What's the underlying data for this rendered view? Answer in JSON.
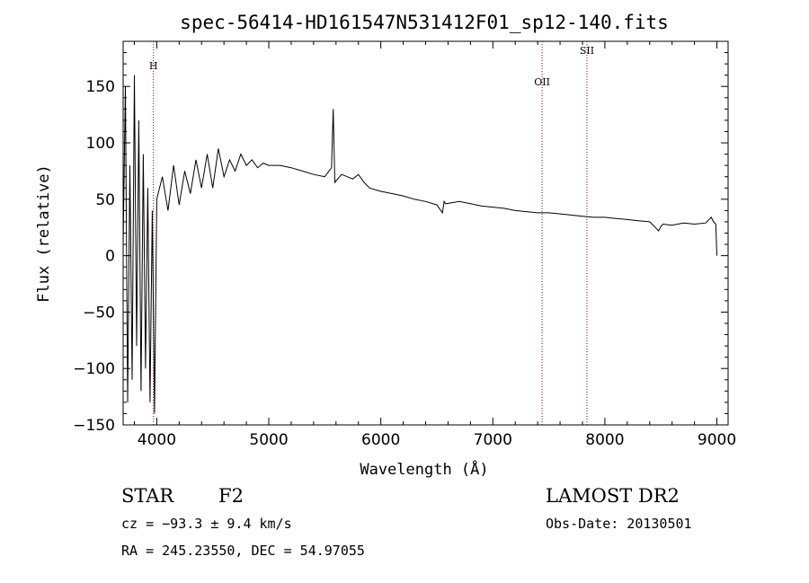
{
  "chart_data": {
    "type": "line",
    "title": "spec-56414-HD161547N531412F01_sp12-140.fits",
    "xlabel": "Wavelength (Å)",
    "ylabel": "Flux (relative)",
    "xlim": [
      3700,
      9100
    ],
    "ylim": [
      -150,
      190
    ],
    "xticks": [
      4000,
      5000,
      6000,
      7000,
      8000,
      9000
    ],
    "yticks": [
      -150,
      -100,
      -50,
      0,
      50,
      100,
      150
    ],
    "spectral_lines": [
      {
        "label": "H",
        "wavelength": 3970
      },
      {
        "label": "OII",
        "wavelength": 7440
      },
      {
        "label": "SII",
        "wavelength": 7840
      }
    ],
    "series": [
      {
        "x": [
          3700,
          3720,
          3740,
          3760,
          3780,
          3800,
          3820,
          3840,
          3860,
          3880,
          3900,
          3920,
          3940,
          3960,
          3980,
          4000,
          4050,
          4100,
          4150,
          4200,
          4250,
          4300,
          4350,
          4400,
          4450,
          4500,
          4550,
          4600,
          4650,
          4700,
          4750,
          4800,
          4850,
          4900,
          4950,
          5000,
          5100,
          5200,
          5300,
          5400,
          5500,
          5560,
          5575,
          5590,
          5650,
          5700,
          5750,
          5800,
          5850,
          5900,
          6000,
          6100,
          6200,
          6300,
          6400,
          6500,
          6550,
          6565,
          6580,
          6700,
          6800,
          6900,
          7000,
          7100,
          7200,
          7300,
          7400,
          7500,
          7600,
          7700,
          7800,
          7900,
          8000,
          8100,
          8200,
          8300,
          8400,
          8480,
          8500,
          8520,
          8600,
          8700,
          8800,
          8900,
          8950,
          8970,
          8990,
          9000
        ],
        "values": [
          10,
          150,
          -130,
          80,
          -110,
          160,
          -80,
          120,
          -120,
          90,
          -100,
          60,
          -130,
          40,
          -140,
          50,
          70,
          40,
          80,
          45,
          75,
          55,
          85,
          60,
          90,
          60,
          95,
          70,
          85,
          75,
          90,
          80,
          85,
          78,
          82,
          80,
          80,
          78,
          75,
          72,
          70,
          78,
          130,
          65,
          72,
          70,
          68,
          72,
          65,
          60,
          57,
          55,
          53,
          50,
          48,
          45,
          38,
          48,
          46,
          48,
          46,
          44,
          43,
          42,
          40,
          39,
          38,
          38,
          37,
          36,
          35,
          34,
          34,
          33,
          32,
          31,
          30,
          22,
          26,
          28,
          27,
          29,
          28,
          29,
          34,
          30,
          28,
          0
        ]
      }
    ]
  },
  "info": {
    "object_class": "STAR",
    "subclass": "F2",
    "survey": "LAMOST DR2",
    "cz": "cz = −93.3 ± 9.4 km/s",
    "obs_date": "Obs-Date: 20130501",
    "coords": "RA = 245.23550, DEC =  54.97055"
  }
}
